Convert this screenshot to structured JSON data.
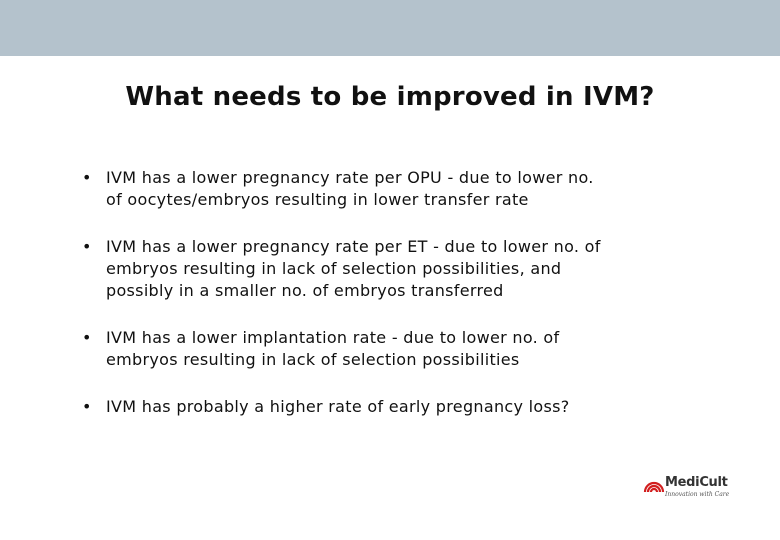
{
  "slide": {
    "title": "What needs to be improved in IVM?",
    "bullet_symbol": "•",
    "bullets": [
      {
        "lines": [
          "IVM has a lower pregnancy rate per OPU  -  due to lower no.",
          "of oocytes/embryos resulting in lower transfer rate"
        ]
      },
      {
        "lines": [
          "IVM has a lower pregnancy rate per ET  -  due to lower no. of",
          "embryos resulting in lack of selection possibilities, and",
          "possibly in a smaller no. of embryos transferred"
        ]
      },
      {
        "lines": [
          "IVM has a lower implantation rate - due to lower no. of",
          "embryos resulting in lack of selection possibilities"
        ]
      },
      {
        "lines": [
          "IVM has probably a higher rate of early pregnancy loss?"
        ]
      }
    ]
  },
  "logo": {
    "name": "MediCult",
    "tagline": "Innovation with Care",
    "icon": "medicult-arcs-icon",
    "accent_color": "#d21f1f"
  },
  "colors": {
    "header_band": "#b4c2cc",
    "background": "#ffffff",
    "text": "#111111"
  }
}
